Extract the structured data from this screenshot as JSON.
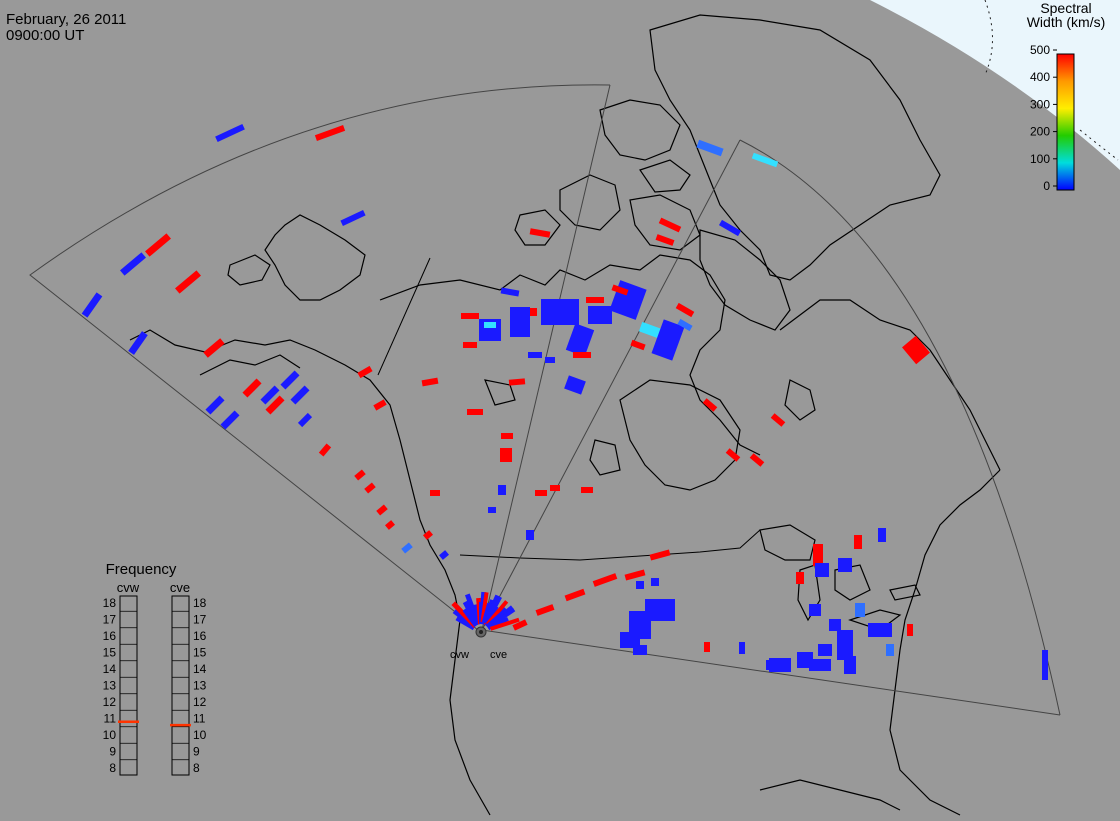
{
  "header": {
    "date": "February, 26 2011",
    "time": "0900:00 UT"
  },
  "colorbar": {
    "title_line1": "Spectral",
    "title_line2": "Width (km/s)",
    "ticks": [
      "500",
      "400",
      "300",
      "200",
      "100",
      "0"
    ],
    "colors": [
      "#ff0000",
      "#ff9900",
      "#ffee00",
      "#22cc00",
      "#00dddd",
      "#0000ff"
    ]
  },
  "radars": {
    "west": "cvw",
    "east": "cve"
  },
  "frequency": {
    "title": "Frequency",
    "col_west": "cvw",
    "col_east": "cve",
    "levels": [
      "18",
      "17",
      "16",
      "15",
      "14",
      "13",
      "12",
      "11",
      "10",
      "9",
      "8"
    ],
    "cvw_value_mhz": 10.8,
    "cve_value_mhz": 10.6,
    "marker_color": "#ff3300"
  },
  "colors": {
    "background": "#999999",
    "daylight": "#eaf6fc",
    "coast": "#000000",
    "fov": "#444444",
    "high_width": "#ff0000",
    "low_width": "#1a1aff",
    "mid_low_width": "#2f6fff",
    "cyan_width": "#33e0ff"
  }
}
